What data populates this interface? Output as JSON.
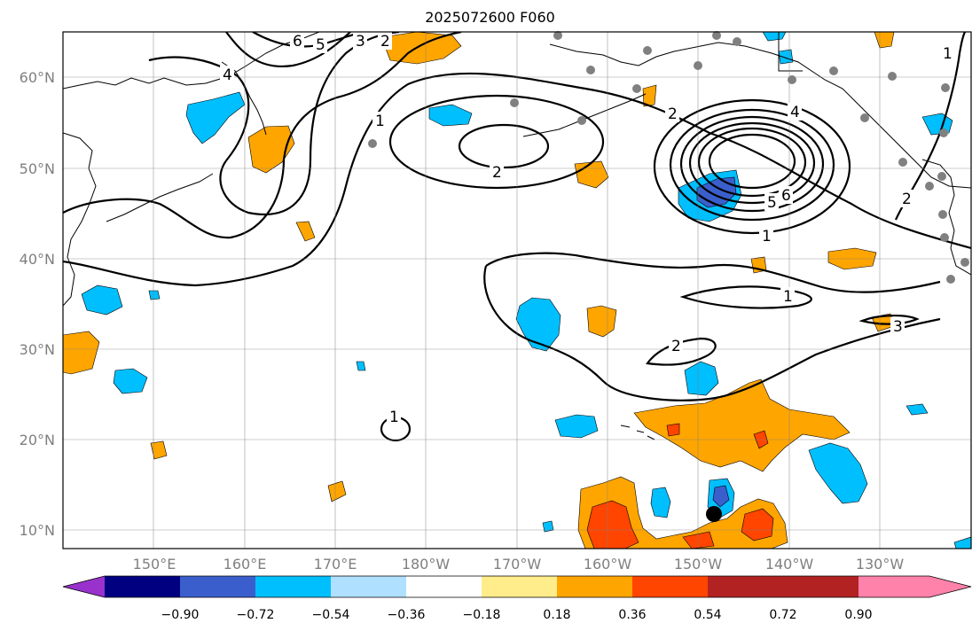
{
  "title": "2025072600 F060",
  "map": {
    "lat_labels": [
      "60°N",
      "50°N",
      "40°N",
      "30°N",
      "20°N",
      "10°N"
    ],
    "lon_labels": [
      "150°E",
      "160°E",
      "170°E",
      "180°W",
      "170°W",
      "160°W",
      "150°W",
      "140°W",
      "130°W"
    ],
    "contour_labels": [
      "6",
      "5",
      "3",
      "2",
      "4",
      "1",
      "2",
      "2",
      "4",
      "5",
      "6",
      "1",
      "1",
      "2",
      "3",
      "1",
      "2",
      "1"
    ],
    "gridlines": true,
    "fill_colors": {
      "blue_light": "#00bfff",
      "blue_mid": "#3a5fcd",
      "orange": "#ffa500",
      "orange_red": "#ff4500"
    },
    "contour_color": "#000000",
    "station_color": "#808080",
    "marker": "black-dot"
  },
  "colorbar": {
    "colors": [
      "#9932cc",
      "#000080",
      "#3a5fcd",
      "#00bfff",
      "#b0e0ff",
      "#ffffff",
      "#ffec8b",
      "#ffa500",
      "#ff4500",
      "#b22222",
      "#ff82ab"
    ],
    "tick_labels": [
      "−0.90",
      "−0.72",
      "−0.54",
      "−0.36",
      "−0.18",
      "0.18",
      "0.36",
      "0.54",
      "0.72",
      "0.90"
    ]
  }
}
